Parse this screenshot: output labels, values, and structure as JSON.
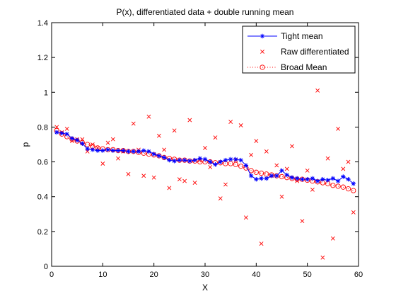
{
  "colors": {
    "tight": "#0000ff",
    "raw": "#ff0000",
    "broad": "#ff0000",
    "axes": "#000000",
    "background": "#ffffff"
  },
  "chart_data": {
    "type": "scatter",
    "title": "P(x), differentiated data + double running mean",
    "xlabel": "X",
    "ylabel": "p",
    "xlim": [
      0,
      60
    ],
    "ylim": [
      0,
      1.4
    ],
    "xticks": [
      0,
      10,
      20,
      30,
      40,
      50,
      60
    ],
    "yticks": [
      0,
      0.2,
      0.4,
      0.6,
      0.8,
      1,
      1.2,
      1.4
    ],
    "xtick_labels": [
      "0",
      "10",
      "20",
      "30",
      "40",
      "50",
      "60"
    ],
    "ytick_labels": [
      "0",
      "0.2",
      "0.4",
      "0.6",
      "0.8",
      "1",
      "1.2",
      "1.4"
    ],
    "grid": false,
    "legend_position": "top-right",
    "series": [
      {
        "name": "Tight mean",
        "marker": "asterisk",
        "line": "solid",
        "color": "#0000ff",
        "x": [
          1,
          2,
          3,
          4,
          5,
          6,
          7,
          8,
          9,
          10,
          11,
          12,
          13,
          14,
          15,
          16,
          17,
          18,
          19,
          20,
          21,
          22,
          23,
          24,
          25,
          26,
          27,
          28,
          29,
          30,
          31,
          32,
          33,
          34,
          35,
          36,
          37,
          38,
          39,
          40,
          41,
          42,
          43,
          44,
          45,
          46,
          47,
          48,
          49,
          50,
          51,
          52,
          53,
          54,
          55,
          56,
          57,
          58,
          59
        ],
        "y": [
          0.77,
          0.765,
          0.76,
          0.735,
          0.725,
          0.705,
          0.675,
          0.67,
          0.665,
          0.665,
          0.67,
          0.665,
          0.665,
          0.665,
          0.66,
          0.66,
          0.66,
          0.665,
          0.66,
          0.645,
          0.635,
          0.625,
          0.61,
          0.605,
          0.61,
          0.61,
          0.605,
          0.61,
          0.62,
          0.615,
          0.6,
          0.585,
          0.6,
          0.61,
          0.615,
          0.615,
          0.61,
          0.58,
          0.52,
          0.5,
          0.505,
          0.505,
          0.52,
          0.52,
          0.55,
          0.525,
          0.51,
          0.505,
          0.5,
          0.5,
          0.505,
          0.49,
          0.5,
          0.495,
          0.505,
          0.49,
          0.515,
          0.5,
          0.475
        ]
      },
      {
        "name": "Raw differentiated",
        "marker": "x",
        "line": "none",
        "color": "#ff0000",
        "x": [
          1,
          2,
          3,
          4,
          5,
          6,
          7,
          8,
          9,
          10,
          11,
          12,
          13,
          14,
          15,
          16,
          17,
          18,
          19,
          20,
          21,
          22,
          23,
          24,
          25,
          26,
          27,
          28,
          29,
          30,
          31,
          32,
          33,
          34,
          35,
          36,
          37,
          38,
          39,
          40,
          41,
          42,
          43,
          44,
          45,
          46,
          47,
          48,
          49,
          50,
          51,
          52,
          53,
          54,
          55,
          56,
          57,
          58,
          59
        ],
        "y": [
          0.8,
          0.77,
          0.79,
          0.72,
          0.73,
          0.73,
          0.66,
          0.7,
          0.68,
          0.59,
          0.71,
          0.73,
          0.62,
          0.66,
          0.53,
          0.82,
          0.67,
          0.52,
          0.86,
          0.51,
          0.75,
          0.67,
          0.45,
          0.78,
          0.5,
          0.49,
          0.84,
          0.48,
          0.61,
          0.68,
          0.57,
          0.74,
          0.39,
          0.47,
          0.83,
          0.61,
          0.81,
          0.28,
          0.64,
          0.72,
          0.13,
          0.66,
          0.52,
          0.58,
          0.4,
          0.56,
          0.69,
          0.49,
          0.26,
          0.55,
          0.44,
          1.01,
          0.05,
          0.62,
          0.16,
          0.79,
          0.56,
          0.6,
          0.31
        ]
      },
      {
        "name": "Broad Mean",
        "marker": "circle",
        "line": "dotted",
        "color": "#ff0000",
        "x": [
          1,
          2,
          3,
          4,
          5,
          6,
          7,
          8,
          9,
          10,
          11,
          12,
          13,
          14,
          15,
          16,
          17,
          18,
          19,
          20,
          21,
          22,
          23,
          24,
          25,
          26,
          27,
          28,
          29,
          30,
          31,
          32,
          33,
          34,
          35,
          36,
          37,
          38,
          39,
          40,
          41,
          42,
          43,
          44,
          45,
          46,
          47,
          48,
          49,
          50,
          51,
          52,
          53,
          54,
          55,
          56,
          57,
          58,
          59
        ],
        "y": [
          0.78,
          0.76,
          0.745,
          0.73,
          0.72,
          0.71,
          0.7,
          0.69,
          0.68,
          0.675,
          0.67,
          0.67,
          0.665,
          0.665,
          0.66,
          0.66,
          0.655,
          0.65,
          0.645,
          0.64,
          0.635,
          0.625,
          0.62,
          0.615,
          0.61,
          0.61,
          0.605,
          0.605,
          0.6,
          0.6,
          0.6,
          0.595,
          0.595,
          0.59,
          0.59,
          0.585,
          0.575,
          0.565,
          0.55,
          0.54,
          0.535,
          0.53,
          0.525,
          0.52,
          0.515,
          0.51,
          0.505,
          0.5,
          0.5,
          0.495,
          0.49,
          0.485,
          0.48,
          0.475,
          0.465,
          0.46,
          0.455,
          0.445,
          0.435
        ]
      }
    ]
  }
}
